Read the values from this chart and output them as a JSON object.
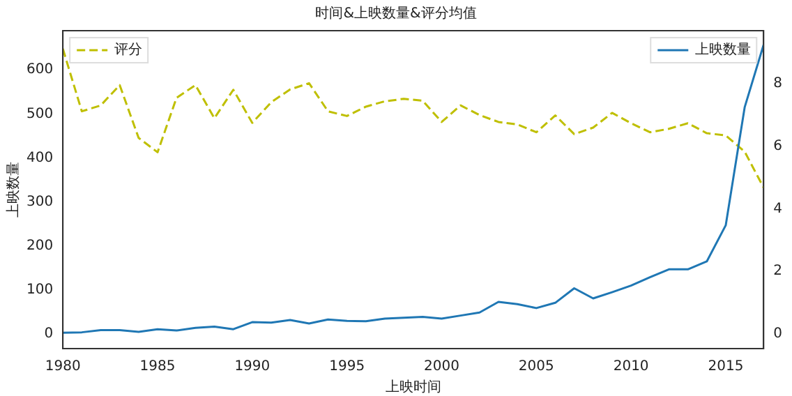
{
  "chart_data": {
    "type": "line",
    "title": "时间&上映数量&评分均值",
    "xlabel": "上映时间",
    "ylabel": "上映数量",
    "x": [
      1980,
      1981,
      1982,
      1983,
      1984,
      1985,
      1986,
      1987,
      1988,
      1989,
      1990,
      1991,
      1992,
      1993,
      1994,
      1995,
      1996,
      1997,
      1998,
      1999,
      2000,
      2001,
      2002,
      2003,
      2004,
      2005,
      2006,
      2007,
      2008,
      2009,
      2010,
      2011,
      2012,
      2013,
      2014,
      2015,
      2016,
      2017
    ],
    "series": [
      {
        "name": "上映数量",
        "color": "#1f77b4",
        "line_style": "solid",
        "values": [
          3,
          4,
          9,
          9,
          5,
          11,
          8,
          14,
          17,
          11,
          27,
          26,
          32,
          24,
          33,
          30,
          29,
          35,
          37,
          39,
          35,
          42,
          49,
          73,
          68,
          59,
          71,
          104,
          81,
          95,
          110,
          129,
          147,
          147,
          165,
          247,
          515,
          657
        ]
      },
      {
        "name": "评分",
        "color": "#bfbf00",
        "axis": "y2",
        "line_style": "dashed",
        "values": [
          9.12,
          7.12,
          7.31,
          7.96,
          6.27,
          5.81,
          7.55,
          7.96,
          6.9,
          7.81,
          6.75,
          7.41,
          7.82,
          8.02,
          7.12,
          6.97,
          7.27,
          7.44,
          7.52,
          7.46,
          6.78,
          7.31,
          7.0,
          6.78,
          6.7,
          6.45,
          6.99,
          6.39,
          6.6,
          7.07,
          6.74,
          6.45,
          6.56,
          6.74,
          6.42,
          6.35,
          5.83,
          4.68
        ]
      }
    ],
    "xlim": [
      1980,
      2017
    ],
    "xticks": [
      1980,
      1985,
      1990,
      1995,
      2000,
      2005,
      2010,
      2015
    ],
    "ylim": [
      -33,
      689
    ],
    "yticks": [
      0,
      100,
      200,
      300,
      400,
      500,
      600
    ],
    "y2lim": [
      -0.47,
      9.7
    ],
    "y2ticks": [
      0,
      2,
      4,
      6,
      8
    ],
    "grid": false,
    "legend": "top",
    "marker": "none"
  }
}
